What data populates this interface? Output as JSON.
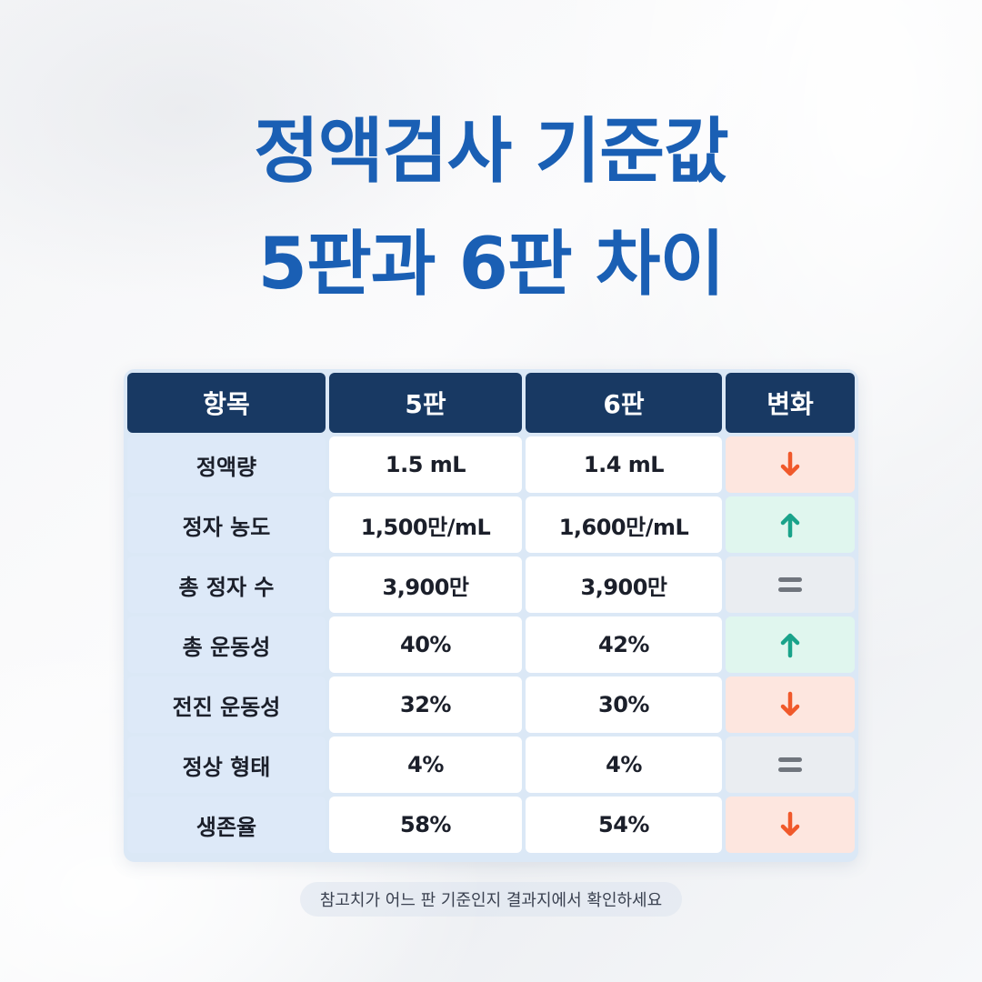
{
  "title": {
    "line1": "정액검사 기준값",
    "line2": "5판과 6판 차이"
  },
  "table": {
    "headers": [
      "항목",
      "5판",
      "6판",
      "변화"
    ],
    "rows": [
      {
        "item": "정액량",
        "v5": "1.5 mL",
        "v6": "1.4 mL",
        "change": "down"
      },
      {
        "item": "정자 농도",
        "v5": "1,500만/mL",
        "v6": "1,600만/mL",
        "change": "up"
      },
      {
        "item": "총 정자 수",
        "v5": "3,900만",
        "v6": "3,900만",
        "change": "same"
      },
      {
        "item": "총 운동성",
        "v5": "40%",
        "v6": "42%",
        "change": "up"
      },
      {
        "item": "전진 운동성",
        "v5": "32%",
        "v6": "30%",
        "change": "down"
      },
      {
        "item": "정상 형태",
        "v5": "4%",
        "v6": "4%",
        "change": "same"
      },
      {
        "item": "생존율",
        "v5": "58%",
        "v6": "54%",
        "change": "down"
      }
    ]
  },
  "icons": {
    "down": "arrow-down-icon",
    "up": "arrow-up-icon",
    "same": "equals-icon"
  },
  "colors": {
    "title": "#1a5fb4",
    "header_bg": "#183963",
    "down_arrow": "#f0592b",
    "up_arrow": "#1aa38a",
    "equals": "#70757d"
  },
  "note": "참고치가 어느 판 기준인지 결과지에서 확인하세요"
}
